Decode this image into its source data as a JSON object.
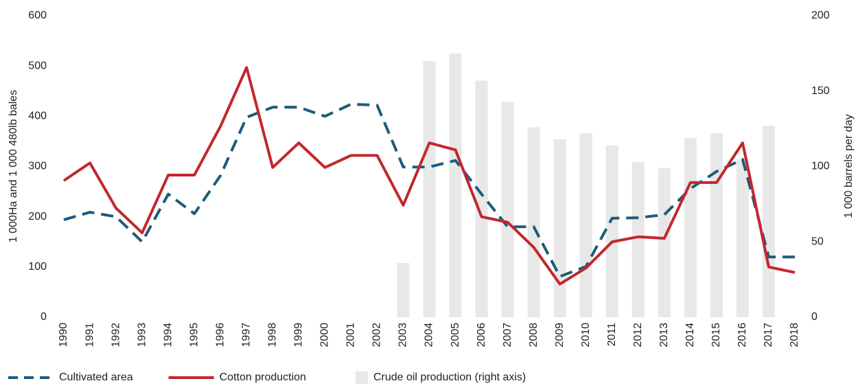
{
  "chart_data": {
    "type": "combo",
    "y_label": "1 000Ha and 1 000 480lb bales",
    "y2_label": "1 000 barrels per day",
    "categories": [
      "1990",
      "1991",
      "1992",
      "1993",
      "1994",
      "1995",
      "1996",
      "1997",
      "1998",
      "1999",
      "2000",
      "2001",
      "2002",
      "2003",
      "2004",
      "2005",
      "2006",
      "2007",
      "2008",
      "2009",
      "2010",
      "2011",
      "2012",
      "2013",
      "2014",
      "2015",
      "2016",
      "2017",
      "2018"
    ],
    "ylim": [
      0,
      600
    ],
    "yticks": [
      0,
      100,
      200,
      300,
      400,
      500,
      600
    ],
    "y2lim": [
      0,
      200
    ],
    "y2ticks": [
      0,
      50,
      100,
      150,
      200
    ],
    "series": [
      {
        "name": "Crude oil production (right axis)",
        "type": "bar",
        "axis": "y2",
        "color": "#e8e8e8",
        "values": [
          null,
          null,
          null,
          null,
          null,
          null,
          null,
          null,
          null,
          null,
          null,
          null,
          null,
          36,
          170,
          175,
          157,
          143,
          126,
          118,
          122,
          114,
          103,
          99,
          119,
          122,
          105,
          127,
          null
        ]
      },
      {
        "name": "Cultivated area",
        "type": "line",
        "style": "dashed",
        "color": "#1d5b79",
        "values": [
          194,
          209,
          200,
          150,
          245,
          206,
          282,
          398,
          418,
          418,
          400,
          424,
          422,
          299,
          299,
          312,
          245,
          180,
          180,
          81,
          101,
          197,
          198,
          204,
          256,
          290,
          314,
          120,
          120
        ]
      },
      {
        "name": "Cotton production",
        "type": "line",
        "style": "solid",
        "color": "#c1272d",
        "values": [
          272,
          307,
          217,
          168,
          283,
          283,
          380,
          497,
          298,
          347,
          298,
          322,
          322,
          223,
          347,
          333,
          200,
          189,
          139,
          66,
          98,
          150,
          160,
          157,
          268,
          268,
          347,
          100,
          89
        ]
      }
    ],
    "legend_order": [
      1,
      2,
      0
    ]
  }
}
